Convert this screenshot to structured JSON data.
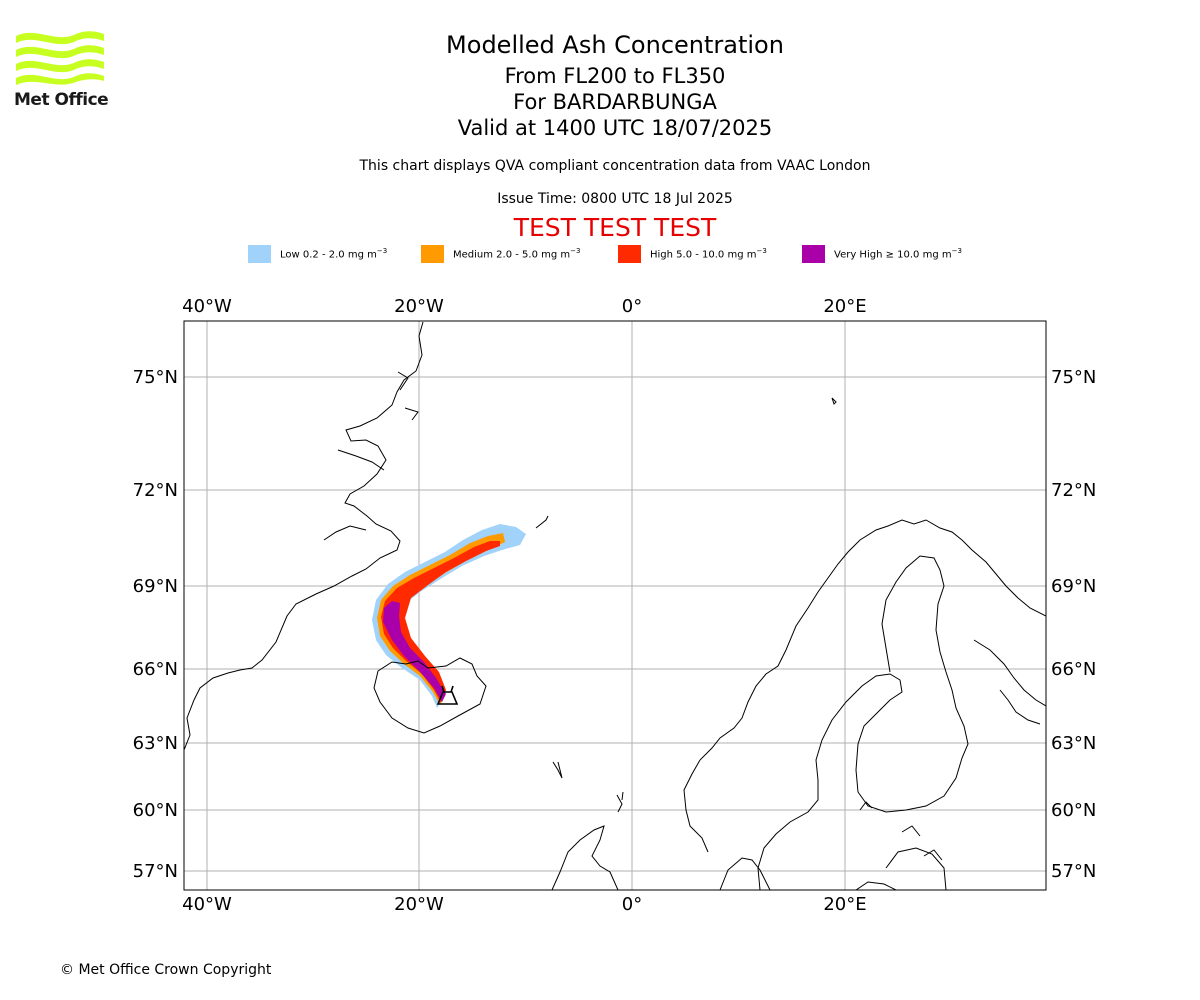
{
  "logo": {
    "text": "Met Office"
  },
  "titles": {
    "main": "Modelled Ash Concentration",
    "levels": "From FL200 to FL350",
    "volcano": "For BARDARBUNGA",
    "valid": "Valid at 1400 UTC 18/07/2025",
    "description": "This chart displays QVA compliant concentration data from VAAC London",
    "issue": "Issue Time: 0800 UTC 18 Jul 2025",
    "test": "TEST TEST TEST"
  },
  "legend": [
    {
      "label": "Low 0.2 - 2.0 mg m",
      "sup": "−3",
      "color": "#a0d2fa"
    },
    {
      "label": "Medium 2.0 - 5.0 mg m",
      "sup": "−3",
      "color": "#ff9a00"
    },
    {
      "label": "High 5.0 - 10.0 mg m",
      "sup": "−3",
      "color": "#ff2a00"
    },
    {
      "label": "Very High ≥ 10.0 mg m",
      "sup": "−3",
      "color": "#aa00aa"
    }
  ],
  "map": {
    "lon_labels": [
      "40°W",
      "20°W",
      "0°",
      "20°E"
    ],
    "lat_labels": [
      "75°N",
      "72°N",
      "69°N",
      "66°N",
      "63°N",
      "60°N",
      "57°N"
    ],
    "lon_range": [
      -42,
      39
    ],
    "lat_range": [
      56,
      77
    ],
    "volcano": {
      "name": "Bardarbunga",
      "symbol": "volcano-icon",
      "lon": -17.5,
      "lat": 64.6
    }
  },
  "footer": {
    "copyright": "© Met Office Crown Copyright"
  }
}
